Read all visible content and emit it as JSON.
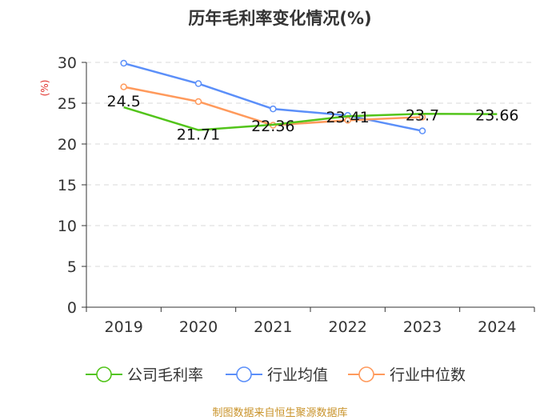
{
  "chart_data": {
    "type": "line",
    "title": "历年毛利率变化情况(%)",
    "ylabel": "(%)",
    "xlabel": "",
    "categories": [
      "2019",
      "2020",
      "2021",
      "2022",
      "2023",
      "2024"
    ],
    "ylim": [
      0,
      30
    ],
    "yticks": [
      0,
      5,
      10,
      15,
      20,
      25,
      30
    ],
    "grid": "horizontal dashed",
    "legend_position": "bottom",
    "series": [
      {
        "name": "公司毛利率",
        "color": "#52c41a",
        "values": [
          24.5,
          21.71,
          22.36,
          23.41,
          23.7,
          23.66
        ],
        "labels": [
          "24.5",
          "21.71",
          "22.36",
          "23.41",
          "23.7",
          "23.66"
        ]
      },
      {
        "name": "行业均值",
        "color": "#5b8ff9",
        "values": [
          29.9,
          27.4,
          24.3,
          23.5,
          21.6,
          null
        ]
      },
      {
        "name": "行业中位数",
        "color": "#ff9a5c",
        "values": [
          27.0,
          25.2,
          22.3,
          22.9,
          23.3,
          null
        ]
      }
    ],
    "source": "制图数据来自恒生聚源数据库"
  }
}
